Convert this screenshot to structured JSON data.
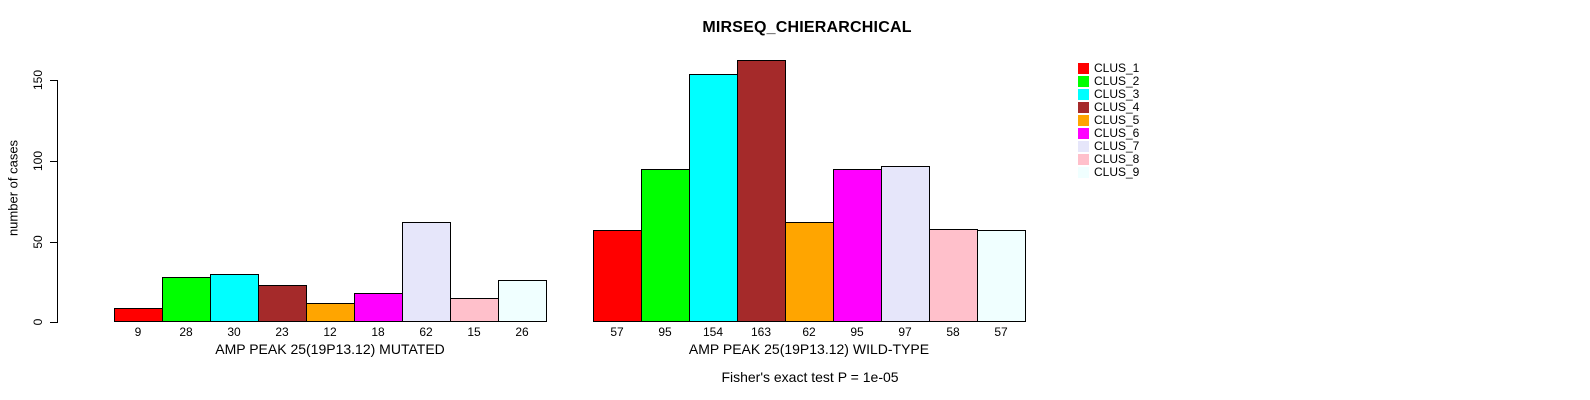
{
  "figure": {
    "title": "MIRSEQ_CHIERARCHICAL",
    "annotation": "Fisher's exact test P = 1e-05"
  },
  "chart_data": {
    "type": "bar",
    "title": "MIRSEQ_CHIERARCHICAL",
    "xlabel": "",
    "ylabel": "number of cases",
    "ylim": [
      0,
      150
    ],
    "yticks": [
      0,
      50,
      100,
      150
    ],
    "grid": false,
    "legend_position": "right",
    "legend": [
      "CLUS_1",
      "CLUS_2",
      "CLUS_3",
      "CLUS_4",
      "CLUS_5",
      "CLUS_6",
      "CLUS_7",
      "CLUS_8",
      "CLUS_9"
    ],
    "colors": [
      "#FF0000",
      "#00FF00",
      "#00FFFF",
      "#A52A2A",
      "#FFA500",
      "#FF00FF",
      "#E6E6FA",
      "#FFC0CB",
      "#F0FFFF"
    ],
    "groups": [
      {
        "label": "AMP PEAK 25(19P13.12) MUTATED",
        "values": [
          9,
          28,
          30,
          23,
          12,
          18,
          62,
          15,
          26
        ]
      },
      {
        "label": "AMP PEAK 25(19P13.12) WILD-TYPE",
        "values": [
          57,
          95,
          154,
          163,
          62,
          95,
          97,
          58,
          57
        ]
      }
    ],
    "annotation": "Fisher's exact test P = 1e-05"
  }
}
